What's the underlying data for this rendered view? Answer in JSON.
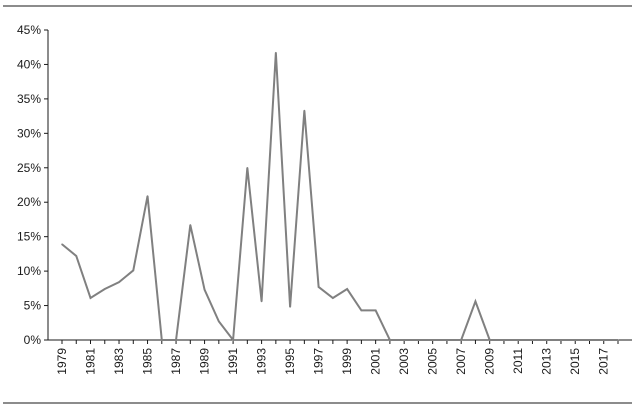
{
  "chart_data": {
    "type": "line",
    "title": "",
    "xlabel": "",
    "ylabel": "",
    "x": [
      1979,
      1980,
      1981,
      1982,
      1983,
      1984,
      1985,
      1986,
      1987,
      1988,
      1989,
      1990,
      1991,
      1992,
      1993,
      1994,
      1995,
      1996,
      1997,
      1998,
      1999,
      2000,
      2001,
      2002,
      2003,
      2004,
      2005,
      2006,
      2007,
      2008,
      2009,
      2010,
      2011,
      2012,
      2013,
      2014,
      2015,
      2016,
      2017,
      2018
    ],
    "x_tick_labels": [
      "1979",
      "1981",
      "1983",
      "1985",
      "1987",
      "1989",
      "1991",
      "1993",
      "1995",
      "1997",
      "1999",
      "2001",
      "2003",
      "2005",
      "2007",
      "2009",
      "2011",
      "2013",
      "2015",
      "2017"
    ],
    "y_tick_labels": [
      "0%",
      "5%",
      "10%",
      "15%",
      "20%",
      "25%",
      "30%",
      "35%",
      "40%",
      "45%"
    ],
    "ylim": [
      0,
      45
    ],
    "y_unit": "%",
    "grid": false,
    "legend": "none",
    "line_color": "#808080",
    "series": [
      {
        "values": [
          13.9,
          12.2,
          6.1,
          7.4,
          8.4,
          10.1,
          20.9,
          0,
          0,
          16.7,
          7.3,
          2.7,
          0,
          25.0,
          5.6,
          41.7,
          4.8,
          33.3,
          7.7,
          6.1,
          7.4,
          4.3,
          4.3,
          0,
          0,
          0,
          0,
          0,
          0,
          5.6,
          0,
          0,
          0,
          0,
          0,
          0,
          0,
          0,
          0,
          0
        ]
      }
    ]
  }
}
